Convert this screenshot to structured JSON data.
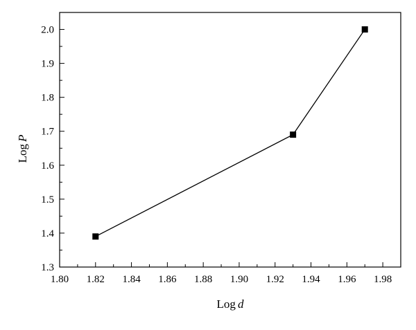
{
  "chart_data": {
    "type": "line",
    "title": "",
    "xlabel": {
      "prefix": "Log",
      "variable": "d"
    },
    "ylabel": {
      "prefix": "Log",
      "variable": "P"
    },
    "xlim": [
      1.8,
      1.99
    ],
    "ylim": [
      1.3,
      2.05
    ],
    "x_ticks": [
      "1.80",
      "1.82",
      "1.84",
      "1.86",
      "1.88",
      "1.90",
      "1.92",
      "1.94",
      "1.96",
      "1.98"
    ],
    "y_ticks": [
      "1.3",
      "1.4",
      "1.5",
      "1.6",
      "1.7",
      "1.8",
      "1.9",
      "2.0"
    ],
    "x_tick_values": [
      1.8,
      1.82,
      1.84,
      1.86,
      1.88,
      1.9,
      1.92,
      1.94,
      1.96,
      1.98
    ],
    "y_tick_values": [
      1.3,
      1.4,
      1.5,
      1.6,
      1.7,
      1.8,
      1.9,
      2.0
    ],
    "grid": false,
    "legend": "none",
    "series": [
      {
        "marker": "square",
        "color": "#000000",
        "x": [
          1.82,
          1.93,
          1.97
        ],
        "y": [
          1.39,
          1.69,
          2.0
        ]
      }
    ]
  }
}
